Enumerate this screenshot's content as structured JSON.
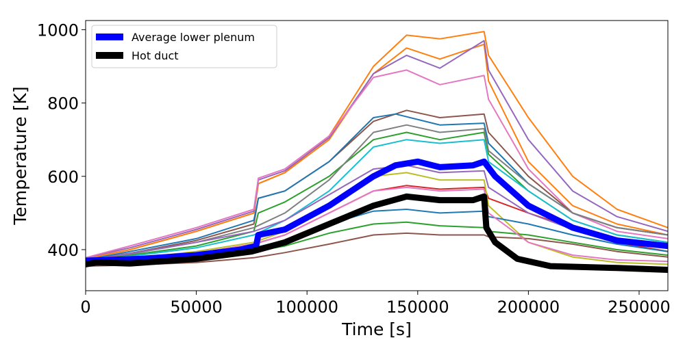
{
  "chart_data": {
    "type": "line",
    "xlabel": "Time [s]",
    "ylabel": "Temperature [K]",
    "xlim": [
      0,
      263000
    ],
    "ylim": [
      288,
      1025
    ],
    "xticks": [
      0,
      50000,
      100000,
      150000,
      200000,
      250000
    ],
    "xtick_labels": [
      "0",
      "50000",
      "100000",
      "150000",
      "200000",
      "250000"
    ],
    "yticks": [
      400,
      600,
      800,
      1000
    ],
    "ytick_labels": [
      "400",
      "600",
      "800",
      "1000"
    ],
    "grid": false,
    "legend_position": "top-left",
    "legend": [
      {
        "label": "Average lower plenum",
        "color": "#0000ff"
      },
      {
        "label": "Hot duct",
        "color": "#000000"
      }
    ],
    "series": [
      {
        "name": "Average lower plenum",
        "color": "#0000ff",
        "width": 9,
        "points": [
          [
            0,
            370
          ],
          [
            10000,
            372
          ],
          [
            25000,
            375
          ],
          [
            50000,
            385
          ],
          [
            70000,
            400
          ],
          [
            77000,
            410
          ],
          [
            78000,
            440
          ],
          [
            90000,
            455
          ],
          [
            110000,
            520
          ],
          [
            130000,
            600
          ],
          [
            140000,
            630
          ],
          [
            150000,
            640
          ],
          [
            160000,
            625
          ],
          [
            175000,
            630
          ],
          [
            180000,
            640
          ],
          [
            185000,
            600
          ],
          [
            200000,
            520
          ],
          [
            220000,
            460
          ],
          [
            240000,
            425
          ],
          [
            263000,
            410
          ]
        ]
      },
      {
        "name": "Hot duct",
        "color": "#000000",
        "width": 9,
        "points": [
          [
            0,
            360
          ],
          [
            5000,
            365
          ],
          [
            20000,
            362
          ],
          [
            50000,
            375
          ],
          [
            75000,
            395
          ],
          [
            90000,
            420
          ],
          [
            110000,
            470
          ],
          [
            130000,
            520
          ],
          [
            145000,
            545
          ],
          [
            160000,
            535
          ],
          [
            175000,
            535
          ],
          [
            180000,
            545
          ],
          [
            181000,
            460
          ],
          [
            185000,
            420
          ],
          [
            195000,
            375
          ],
          [
            210000,
            355
          ],
          [
            240000,
            350
          ],
          [
            263000,
            345
          ]
        ]
      }
    ],
    "background_series": [
      {
        "color": "#ff7f0e",
        "points": [
          [
            0,
            375
          ],
          [
            20000,
            400
          ],
          [
            50000,
            450
          ],
          [
            76000,
            500
          ],
          [
            78000,
            580
          ],
          [
            90000,
            610
          ],
          [
            110000,
            710
          ],
          [
            130000,
            900
          ],
          [
            145000,
            985
          ],
          [
            160000,
            975
          ],
          [
            180000,
            995
          ],
          [
            182000,
            930
          ],
          [
            200000,
            760
          ],
          [
            220000,
            600
          ],
          [
            240000,
            510
          ],
          [
            263000,
            460
          ]
        ]
      },
      {
        "color": "#ff7f0e",
        "points": [
          [
            0,
            375
          ],
          [
            20000,
            400
          ],
          [
            50000,
            450
          ],
          [
            76000,
            500
          ],
          [
            78000,
            580
          ],
          [
            90000,
            610
          ],
          [
            110000,
            700
          ],
          [
            130000,
            880
          ],
          [
            145000,
            950
          ],
          [
            160000,
            920
          ],
          [
            180000,
            960
          ],
          [
            182000,
            860
          ],
          [
            200000,
            640
          ],
          [
            220000,
            520
          ],
          [
            240000,
            470
          ],
          [
            263000,
            440
          ]
        ]
      },
      {
        "color": "#9467bd",
        "points": [
          [
            0,
            378
          ],
          [
            20000,
            405
          ],
          [
            50000,
            455
          ],
          [
            76000,
            505
          ],
          [
            78000,
            590
          ],
          [
            90000,
            615
          ],
          [
            110000,
            705
          ],
          [
            130000,
            880
          ],
          [
            145000,
            930
          ],
          [
            160000,
            895
          ],
          [
            180000,
            970
          ],
          [
            182000,
            890
          ],
          [
            200000,
            700
          ],
          [
            220000,
            560
          ],
          [
            240000,
            490
          ],
          [
            263000,
            450
          ]
        ]
      },
      {
        "color": "#e377c2",
        "points": [
          [
            0,
            378
          ],
          [
            20000,
            410
          ],
          [
            50000,
            460
          ],
          [
            76000,
            510
          ],
          [
            78000,
            595
          ],
          [
            90000,
            620
          ],
          [
            110000,
            710
          ],
          [
            130000,
            870
          ],
          [
            145000,
            890
          ],
          [
            160000,
            850
          ],
          [
            180000,
            875
          ],
          [
            182000,
            810
          ],
          [
            200000,
            620
          ],
          [
            220000,
            500
          ],
          [
            240000,
            450
          ],
          [
            263000,
            430
          ]
        ]
      },
      {
        "color": "#8c564b",
        "points": [
          [
            0,
            372
          ],
          [
            20000,
            390
          ],
          [
            50000,
            425
          ],
          [
            76000,
            470
          ],
          [
            78000,
            540
          ],
          [
            90000,
            560
          ],
          [
            110000,
            640
          ],
          [
            130000,
            750
          ],
          [
            145000,
            780
          ],
          [
            160000,
            760
          ],
          [
            180000,
            770
          ],
          [
            182000,
            720
          ],
          [
            200000,
            600
          ],
          [
            220000,
            500
          ],
          [
            240000,
            460
          ],
          [
            263000,
            440
          ]
        ]
      },
      {
        "color": "#1f77b4",
        "points": [
          [
            0,
            372
          ],
          [
            20000,
            395
          ],
          [
            50000,
            430
          ],
          [
            76000,
            480
          ],
          [
            78000,
            540
          ],
          [
            90000,
            560
          ],
          [
            110000,
            640
          ],
          [
            130000,
            760
          ],
          [
            140000,
            770
          ],
          [
            160000,
            740
          ],
          [
            180000,
            745
          ],
          [
            182000,
            690
          ],
          [
            200000,
            580
          ],
          [
            220000,
            500
          ],
          [
            240000,
            460
          ],
          [
            263000,
            440
          ]
        ]
      },
      {
        "color": "#2ca02c",
        "points": [
          [
            0,
            370
          ],
          [
            20000,
            385
          ],
          [
            50000,
            410
          ],
          [
            76000,
            450
          ],
          [
            78000,
            500
          ],
          [
            90000,
            530
          ],
          [
            110000,
            600
          ],
          [
            130000,
            700
          ],
          [
            145000,
            720
          ],
          [
            160000,
            700
          ],
          [
            180000,
            720
          ],
          [
            182000,
            660
          ],
          [
            200000,
            560
          ],
          [
            220000,
            480
          ],
          [
            240000,
            440
          ],
          [
            263000,
            420
          ]
        ]
      },
      {
        "color": "#17becf",
        "points": [
          [
            0,
            370
          ],
          [
            20000,
            382
          ],
          [
            50000,
            405
          ],
          [
            76000,
            440
          ],
          [
            90000,
            480
          ],
          [
            110000,
            560
          ],
          [
            130000,
            680
          ],
          [
            145000,
            700
          ],
          [
            160000,
            690
          ],
          [
            180000,
            700
          ],
          [
            182000,
            640
          ],
          [
            200000,
            560
          ],
          [
            220000,
            480
          ],
          [
            240000,
            440
          ],
          [
            263000,
            420
          ]
        ]
      },
      {
        "color": "#7f7f7f",
        "points": [
          [
            0,
            372
          ],
          [
            20000,
            388
          ],
          [
            50000,
            420
          ],
          [
            76000,
            460
          ],
          [
            90000,
            500
          ],
          [
            110000,
            590
          ],
          [
            130000,
            720
          ],
          [
            145000,
            740
          ],
          [
            160000,
            720
          ],
          [
            180000,
            730
          ],
          [
            182000,
            670
          ],
          [
            200000,
            580
          ],
          [
            220000,
            500
          ],
          [
            240000,
            460
          ],
          [
            263000,
            440
          ]
        ]
      },
      {
        "color": "#d62728",
        "points": [
          [
            0,
            365
          ],
          [
            20000,
            372
          ],
          [
            50000,
            390
          ],
          [
            76000,
            415
          ],
          [
            90000,
            440
          ],
          [
            110000,
            500
          ],
          [
            130000,
            560
          ],
          [
            145000,
            575
          ],
          [
            160000,
            565
          ],
          [
            180000,
            570
          ],
          [
            182000,
            540
          ],
          [
            200000,
            500
          ],
          [
            220000,
            460
          ],
          [
            240000,
            420
          ],
          [
            263000,
            395
          ]
        ]
      },
      {
        "color": "#bcbd22",
        "points": [
          [
            0,
            365
          ],
          [
            20000,
            375
          ],
          [
            50000,
            395
          ],
          [
            76000,
            420
          ],
          [
            90000,
            450
          ],
          [
            110000,
            520
          ],
          [
            130000,
            600
          ],
          [
            145000,
            610
          ],
          [
            160000,
            590
          ],
          [
            180000,
            590
          ],
          [
            182000,
            520
          ],
          [
            200000,
            420
          ],
          [
            220000,
            380
          ],
          [
            240000,
            365
          ],
          [
            263000,
            360
          ]
        ]
      },
      {
        "color": "#1f77b4",
        "points": [
          [
            0,
            362
          ],
          [
            20000,
            370
          ],
          [
            50000,
            385
          ],
          [
            76000,
            405
          ],
          [
            90000,
            425
          ],
          [
            110000,
            470
          ],
          [
            130000,
            505
          ],
          [
            145000,
            510
          ],
          [
            160000,
            500
          ],
          [
            180000,
            505
          ],
          [
            182000,
            490
          ],
          [
            200000,
            470
          ],
          [
            220000,
            440
          ],
          [
            240000,
            415
          ],
          [
            263000,
            395
          ]
        ]
      },
      {
        "color": "#2ca02c",
        "points": [
          [
            0,
            360
          ],
          [
            20000,
            366
          ],
          [
            50000,
            378
          ],
          [
            76000,
            395
          ],
          [
            90000,
            410
          ],
          [
            110000,
            445
          ],
          [
            130000,
            470
          ],
          [
            145000,
            475
          ],
          [
            160000,
            465
          ],
          [
            180000,
            460
          ],
          [
            182000,
            450
          ],
          [
            200000,
            440
          ],
          [
            220000,
            420
          ],
          [
            240000,
            400
          ],
          [
            263000,
            385
          ]
        ]
      },
      {
        "color": "#8c564b",
        "points": [
          [
            0,
            355
          ],
          [
            20000,
            358
          ],
          [
            50000,
            365
          ],
          [
            76000,
            378
          ],
          [
            90000,
            392
          ],
          [
            110000,
            415
          ],
          [
            130000,
            440
          ],
          [
            145000,
            445
          ],
          [
            160000,
            440
          ],
          [
            180000,
            440
          ],
          [
            182000,
            435
          ],
          [
            200000,
            430
          ],
          [
            220000,
            415
          ],
          [
            240000,
            395
          ],
          [
            263000,
            380
          ]
        ]
      },
      {
        "color": "#e377c2",
        "points": [
          [
            0,
            362
          ],
          [
            20000,
            372
          ],
          [
            50000,
            390
          ],
          [
            76000,
            415
          ],
          [
            90000,
            440
          ],
          [
            110000,
            500
          ],
          [
            130000,
            560
          ],
          [
            145000,
            570
          ],
          [
            160000,
            560
          ],
          [
            180000,
            565
          ],
          [
            182000,
            500
          ],
          [
            200000,
            420
          ],
          [
            220000,
            385
          ],
          [
            240000,
            372
          ],
          [
            263000,
            368
          ]
        ]
      },
      {
        "color": "#9467bd",
        "points": [
          [
            0,
            370
          ],
          [
            20000,
            390
          ],
          [
            50000,
            420
          ],
          [
            76000,
            450
          ],
          [
            90000,
            480
          ],
          [
            110000,
            550
          ],
          [
            130000,
            620
          ],
          [
            145000,
            630
          ],
          [
            160000,
            610
          ],
          [
            180000,
            615
          ],
          [
            182000,
            570
          ],
          [
            200000,
            500
          ],
          [
            220000,
            455
          ],
          [
            240000,
            430
          ],
          [
            263000,
            410
          ]
        ]
      }
    ]
  }
}
